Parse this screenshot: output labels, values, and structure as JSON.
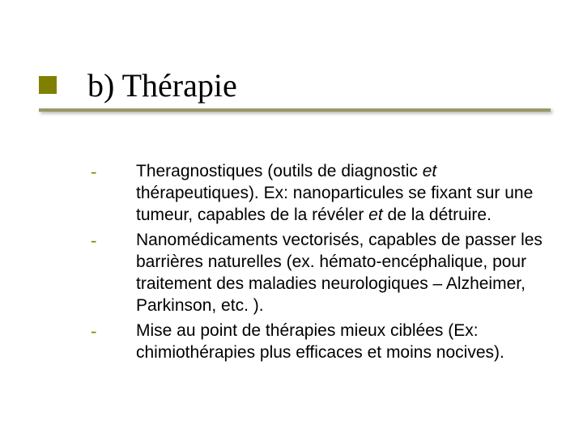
{
  "slide": {
    "title": "b) Thérapie",
    "accent_color": "#808000",
    "underline_color": "#999966",
    "background_color": "#ffffff",
    "title_font": "Times New Roman",
    "title_fontsize": 40,
    "body_font": "Verdana",
    "body_fontsize": 21,
    "body_lineheight": 27,
    "bullet_char": "-",
    "bullets": [
      {
        "html": "Theragnostiques (outils de diagnostic <em>et</em> thérapeutiques). Ex: nanoparticules se fixant sur une tumeur, capables de la révéler <em>et</em>  de la détruire."
      },
      {
        "html": "Nanomédicaments vectorisés, capables de passer les barrières naturelles (ex. hémato-encéphalique, pour traitement des maladies neurologiques – Alzheimer, Parkinson, etc. )."
      },
      {
        "html": "Mise au point de thérapies mieux ciblées (Ex: chimiothérapies plus efficaces et moins nocives)."
      }
    ]
  }
}
